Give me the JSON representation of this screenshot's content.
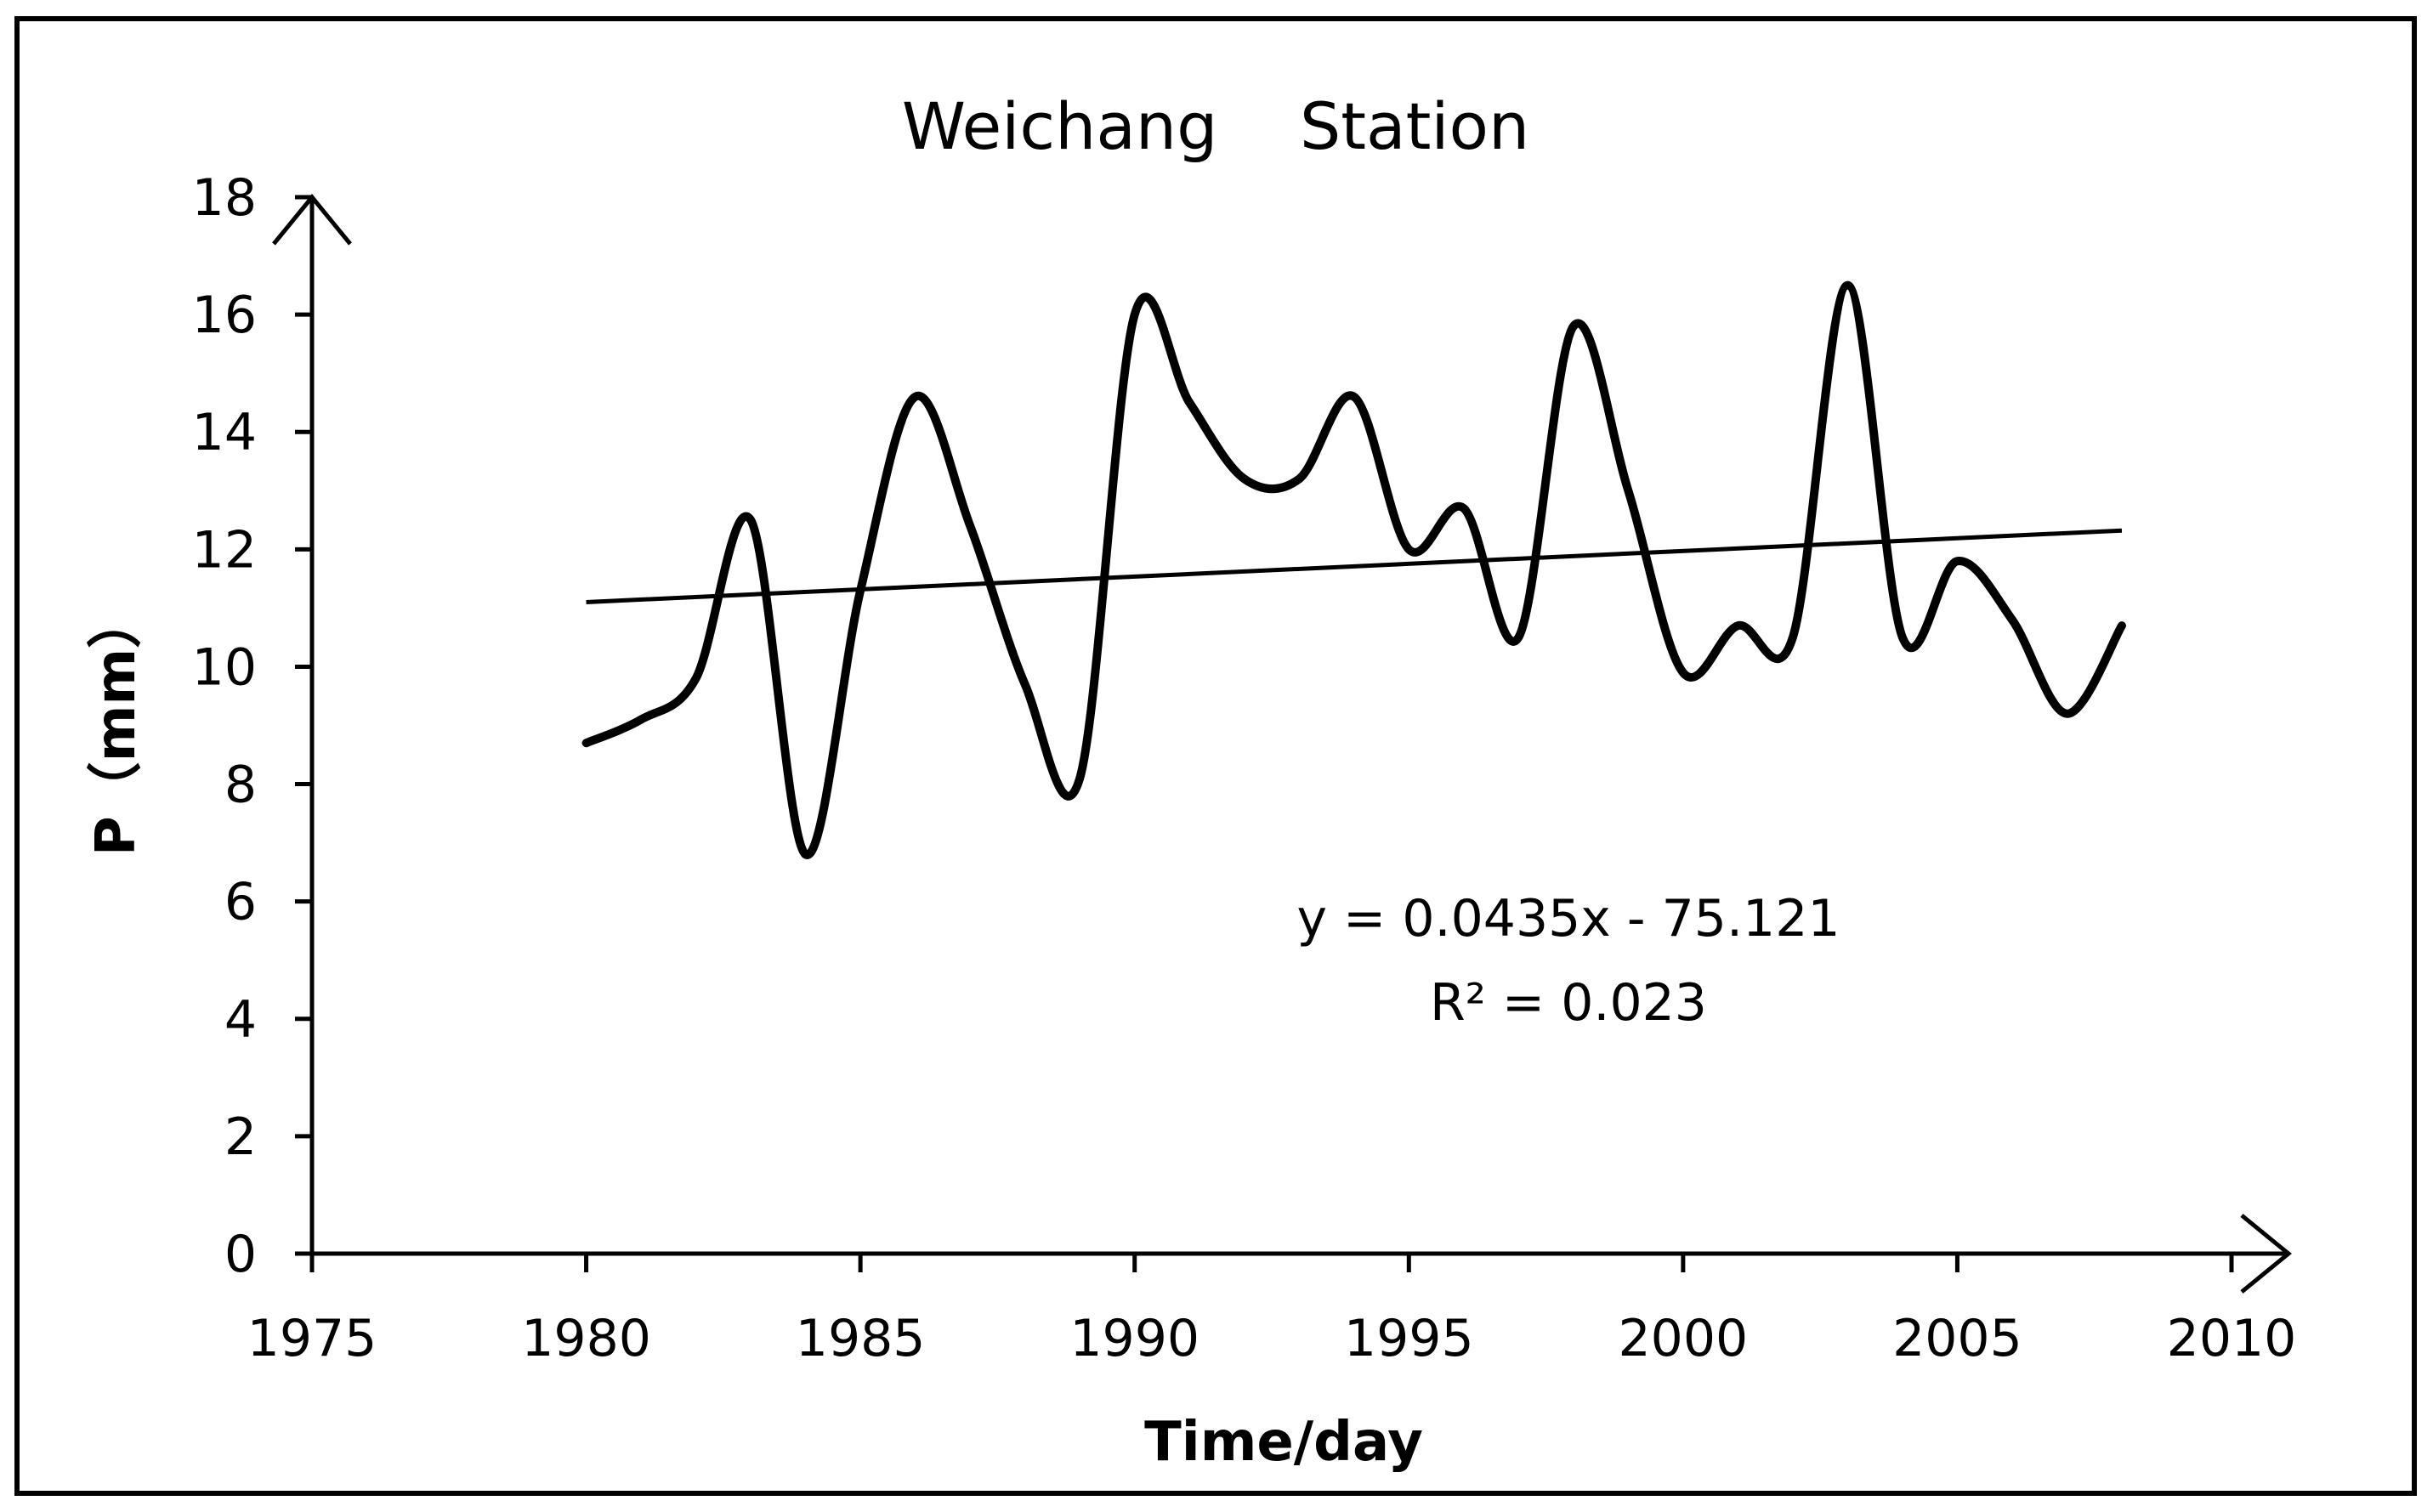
{
  "chart_data": {
    "type": "line",
    "title": "Weichang    Station",
    "xlabel": "Time/day",
    "ylabel": "P（mm）",
    "xlim": [
      1975,
      2010
    ],
    "ylim": [
      0,
      18
    ],
    "xticks": [
      1975,
      1980,
      1985,
      1990,
      1995,
      2000,
      2005,
      2010
    ],
    "yticks": [
      0,
      2,
      4,
      6,
      8,
      10,
      12,
      14,
      16,
      18
    ],
    "grid": false,
    "legend": "none",
    "series": [
      {
        "style": "smooth",
        "x": [
          1980,
          1981,
          1982,
          1983,
          1984,
          1985,
          1986,
          1987,
          1988,
          1989,
          1990,
          1991,
          1992,
          1993,
          1994,
          1995,
          1996,
          1997,
          1998,
          1999,
          2000,
          2001,
          2002,
          2003,
          2004,
          2005,
          2006,
          2007,
          2008
        ],
        "y": [
          8.7,
          9.1,
          9.8,
          12.5,
          6.8,
          11.3,
          14.6,
          12.4,
          9.7,
          8.1,
          16.0,
          14.5,
          13.2,
          13.2,
          14.6,
          12.0,
          12.7,
          10.5,
          15.8,
          13.0,
          9.9,
          10.7,
          10.5,
          16.5,
          10.5,
          11.8,
          10.8,
          9.2,
          10.7
        ]
      },
      {
        "style": "trendline",
        "x": [
          1980,
          2008
        ],
        "y": [
          11.1,
          12.32
        ]
      }
    ],
    "annotations": [
      "y = 0.0435x - 75.121",
      "R² = 0.023"
    ]
  }
}
